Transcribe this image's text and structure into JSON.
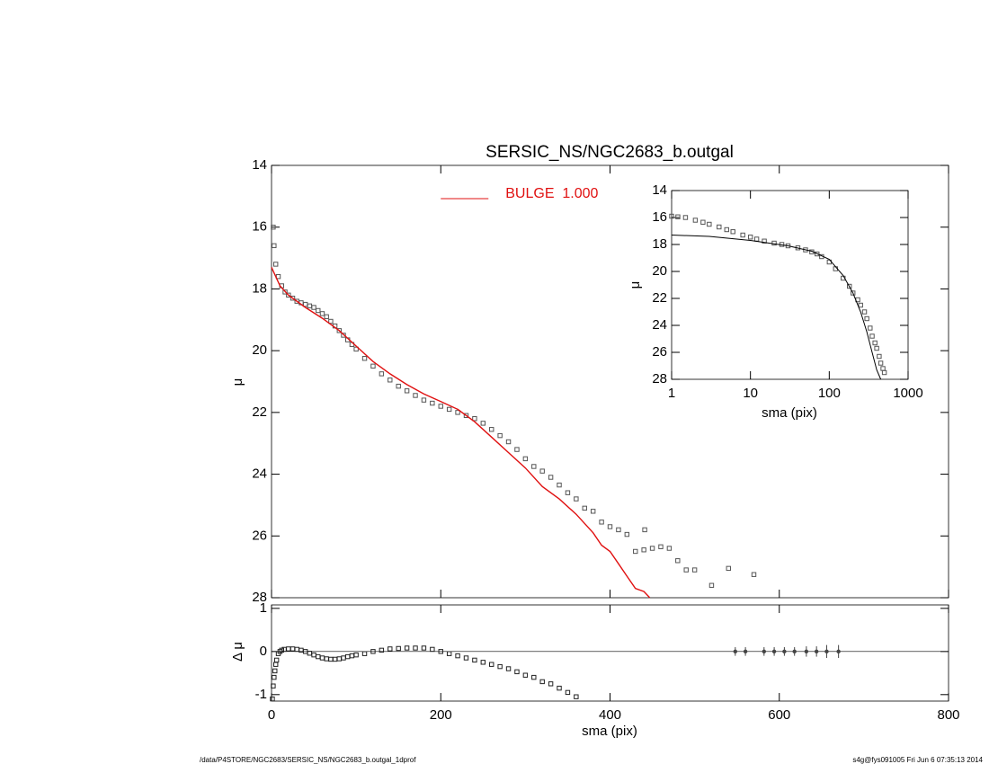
{
  "footer": {
    "left": "/data/P4STORE/NGC2683/SERSIC_NS/NGC2683_b.outgal_1dprof",
    "right": "s4g@fys091005  Fri Jun  6 07:35:13 2014"
  },
  "chart_data": [
    {
      "type": "line",
      "title": "SERSIC_NS/NGC2683_b.outgal",
      "ylabel": "μ",
      "xlim": [
        0,
        800
      ],
      "xticks": [
        0,
        200,
        400,
        600,
        800
      ],
      "xtick_labels": false,
      "ylim": [
        28,
        14
      ],
      "yticks": [
        14,
        16,
        18,
        20,
        22,
        24,
        26,
        28
      ],
      "legend": "upper center",
      "series": [
        {
          "style": "markers",
          "color": "#555555",
          "x": [
            2,
            3,
            5,
            8,
            12,
            16,
            20,
            25,
            30,
            35,
            40,
            45,
            50,
            55,
            60,
            65,
            70,
            75,
            80,
            85,
            90,
            95,
            100,
            110,
            120,
            130,
            140,
            150,
            160,
            170,
            180,
            190,
            200,
            210,
            220,
            230,
            240,
            250,
            260,
            270,
            280,
            290,
            300,
            310,
            320,
            330,
            340,
            350,
            360,
            370,
            380,
            390,
            400,
            410,
            420,
            430,
            440,
            441,
            450,
            460,
            470,
            480,
            490,
            500,
            520,
            540,
            570
          ],
          "values": [
            16.0,
            16.6,
            17.2,
            17.6,
            17.9,
            18.1,
            18.2,
            18.3,
            18.4,
            18.45,
            18.5,
            18.55,
            18.6,
            18.7,
            18.8,
            18.9,
            19.05,
            19.2,
            19.35,
            19.5,
            19.65,
            19.8,
            19.95,
            20.25,
            20.5,
            20.75,
            20.95,
            21.15,
            21.3,
            21.45,
            21.6,
            21.7,
            21.8,
            21.9,
            22.0,
            22.1,
            22.2,
            22.35,
            22.55,
            22.75,
            22.95,
            23.2,
            23.5,
            23.75,
            23.9,
            24.1,
            24.35,
            24.6,
            24.8,
            25.1,
            25.2,
            25.55,
            25.7,
            25.8,
            25.95,
            26.5,
            26.45,
            25.8,
            26.4,
            26.35,
            26.4,
            26.8,
            27.1,
            27.1,
            27.6,
            27.05,
            27.25
          ]
        },
        {
          "style": "line",
          "name": "BULGE  1.000",
          "color": "#e01010",
          "x": [
            0,
            10,
            20,
            40,
            60,
            80,
            100,
            120,
            140,
            160,
            180,
            200,
            220,
            240,
            260,
            280,
            300,
            320,
            340,
            360,
            380,
            390,
            400,
            410,
            420,
            430,
            440,
            447
          ],
          "values": [
            17.3,
            17.9,
            18.2,
            18.6,
            18.95,
            19.35,
            19.85,
            20.35,
            20.75,
            21.1,
            21.4,
            21.65,
            21.9,
            22.3,
            22.8,
            23.3,
            23.8,
            24.4,
            24.8,
            25.3,
            25.9,
            26.3,
            26.5,
            26.9,
            27.3,
            27.7,
            27.8,
            28.0
          ]
        }
      ]
    },
    {
      "type": "line",
      "xlabel": "sma (pix)",
      "ylabel": "μ",
      "xscale": "log",
      "xlim": [
        1,
        1000
      ],
      "xticks": [
        1,
        10,
        100,
        1000
      ],
      "ylim": [
        28,
        14
      ],
      "yticks": [
        14,
        16,
        18,
        20,
        22,
        24,
        26,
        28
      ],
      "series": [
        {
          "style": "markers",
          "color": "#555555",
          "x": [
            1,
            1.2,
            1.5,
            2,
            2.5,
            3,
            4,
            5,
            6,
            8,
            10,
            12,
            15,
            20,
            25,
            30,
            40,
            50,
            60,
            70,
            80,
            100,
            120,
            150,
            180,
            200,
            230,
            250,
            280,
            300,
            330,
            350,
            380,
            400,
            430,
            450,
            480,
            500
          ],
          "values": [
            15.9,
            15.95,
            16.0,
            16.2,
            16.35,
            16.5,
            16.7,
            16.9,
            17.05,
            17.3,
            17.45,
            17.6,
            17.75,
            17.9,
            18.0,
            18.1,
            18.25,
            18.4,
            18.55,
            18.7,
            18.9,
            19.3,
            19.8,
            20.5,
            21.1,
            21.6,
            22.1,
            22.5,
            23.0,
            23.5,
            24.2,
            24.8,
            25.3,
            25.7,
            26.3,
            26.8,
            27.2,
            27.5
          ]
        },
        {
          "style": "line",
          "color": "#000000",
          "x": [
            1,
            3,
            10,
            30,
            60,
            100,
            150,
            200,
            250,
            300,
            350,
            400,
            450
          ],
          "values": [
            17.3,
            17.4,
            17.7,
            18.1,
            18.5,
            19.1,
            20.3,
            21.6,
            23.0,
            24.5,
            26.0,
            27.3,
            28.0
          ]
        }
      ]
    },
    {
      "type": "line",
      "xlabel": "sma (pix)",
      "ylabel": "Δ μ",
      "zero_line": true,
      "xlim": [
        0,
        800
      ],
      "xticks": [
        0,
        200,
        400,
        600,
        800
      ],
      "ylim": [
        -1.15,
        1.08
      ],
      "yticks": [
        -1,
        0,
        1
      ],
      "series": [
        {
          "style": "markers",
          "color": "#222222",
          "x": [
            1,
            2,
            3,
            4,
            5,
            6,
            8,
            10,
            12,
            15,
            20,
            25,
            30,
            35,
            40,
            45,
            50,
            55,
            60,
            65,
            70,
            75,
            80,
            85,
            90,
            95,
            100,
            110,
            120,
            130,
            140,
            150,
            160,
            170,
            180,
            190,
            200,
            210,
            220,
            230,
            240,
            250,
            260,
            270,
            280,
            290,
            300,
            310,
            320,
            330,
            340,
            350,
            360
          ],
          "values": [
            -1.1,
            -0.8,
            -0.6,
            -0.45,
            -0.3,
            -0.2,
            -0.05,
            0.0,
            0.03,
            0.05,
            0.06,
            0.06,
            0.05,
            0.03,
            0.0,
            -0.04,
            -0.08,
            -0.12,
            -0.15,
            -0.17,
            -0.18,
            -0.18,
            -0.17,
            -0.15,
            -0.12,
            -0.1,
            -0.08,
            -0.05,
            0.0,
            0.03,
            0.06,
            0.07,
            0.08,
            0.08,
            0.08,
            0.05,
            0.0,
            -0.05,
            -0.1,
            -0.15,
            -0.2,
            -0.25,
            -0.3,
            -0.35,
            -0.4,
            -0.47,
            -0.55,
            -0.6,
            -0.7,
            -0.75,
            -0.85,
            -0.95,
            -1.05
          ]
        },
        {
          "style": "errorbars",
          "color": "#444444",
          "x": [
            548,
            560,
            582,
            594,
            606,
            618,
            632,
            644,
            656,
            670
          ],
          "values": [
            0,
            0,
            0,
            0,
            0,
            0,
            0,
            0,
            0,
            0
          ],
          "errors": [
            0.1,
            0.1,
            0.1,
            0.1,
            0.1,
            0.1,
            0.12,
            0.12,
            0.15,
            0.15
          ]
        }
      ]
    }
  ]
}
